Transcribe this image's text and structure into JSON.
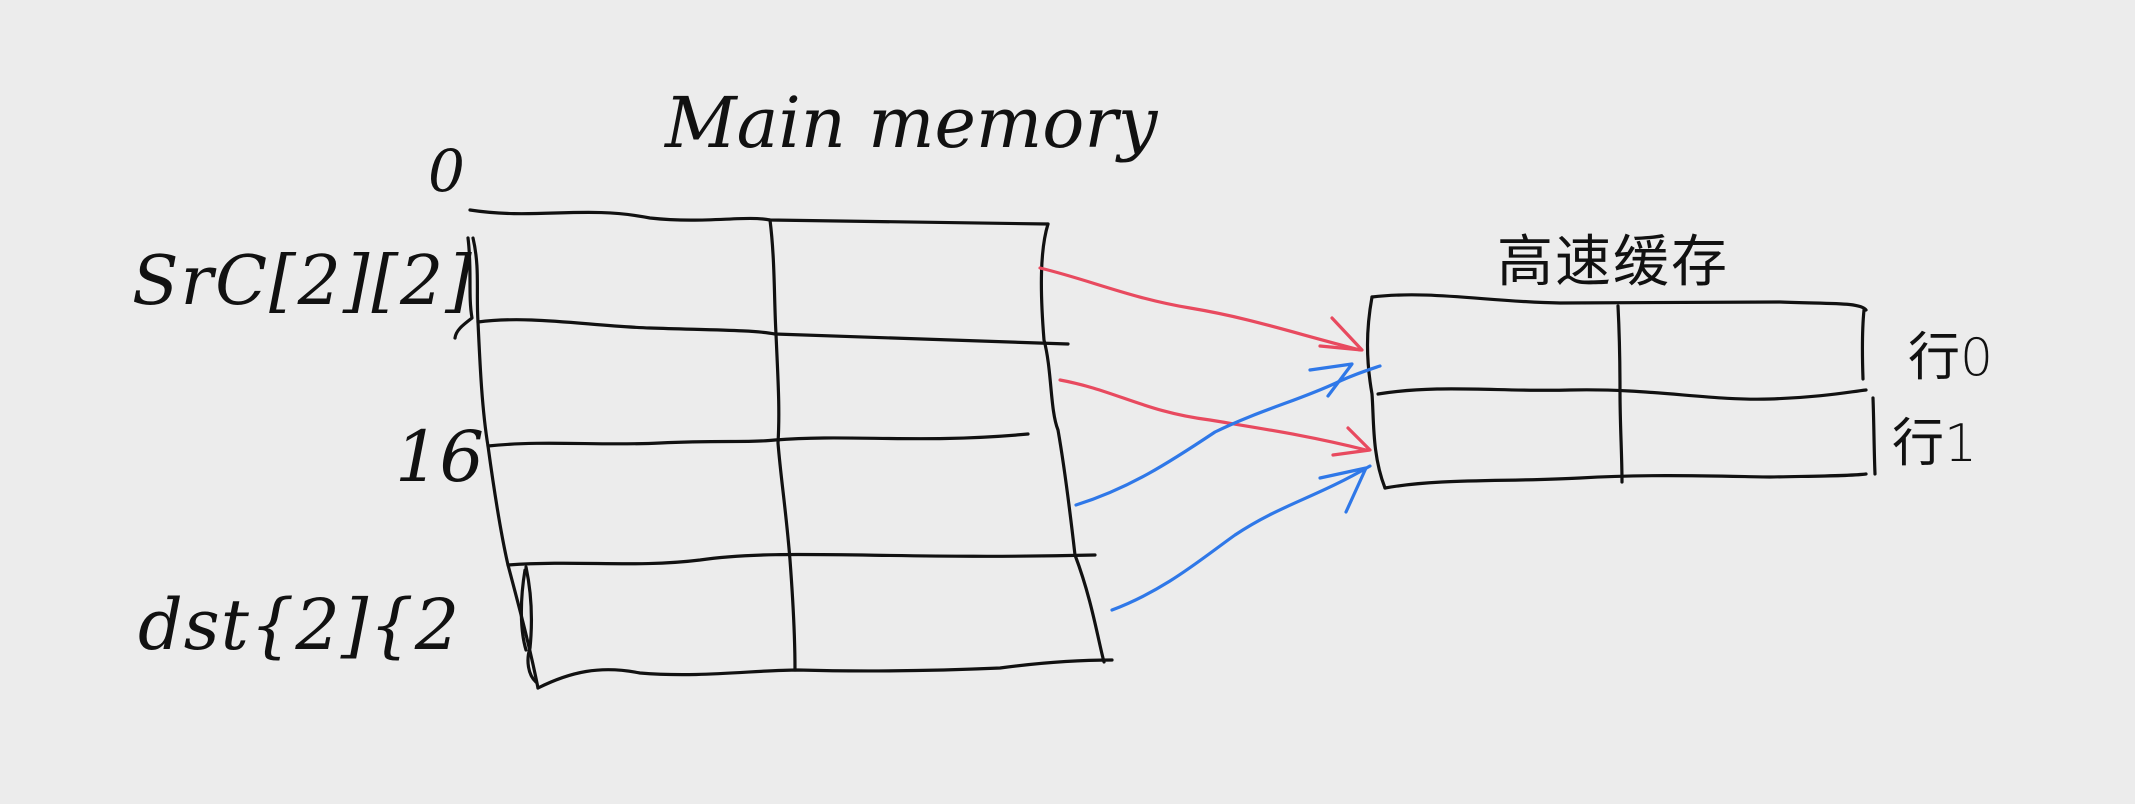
{
  "diagram": {
    "main_memory": {
      "title": "Main memory",
      "address_0": "0",
      "address_16": "16",
      "src_label": "SrC[2][2]",
      "dst_label": "dst{2]{2"
    },
    "cache": {
      "title": "高速缓存",
      "row_0_label": "行0",
      "row_1_label": "行1"
    },
    "arrow_colors": {
      "src_to_cache": "#e84a5f",
      "dst_to_cache": "#2f78e8"
    },
    "ink_color": "#111111",
    "background_color": "#ececec"
  }
}
